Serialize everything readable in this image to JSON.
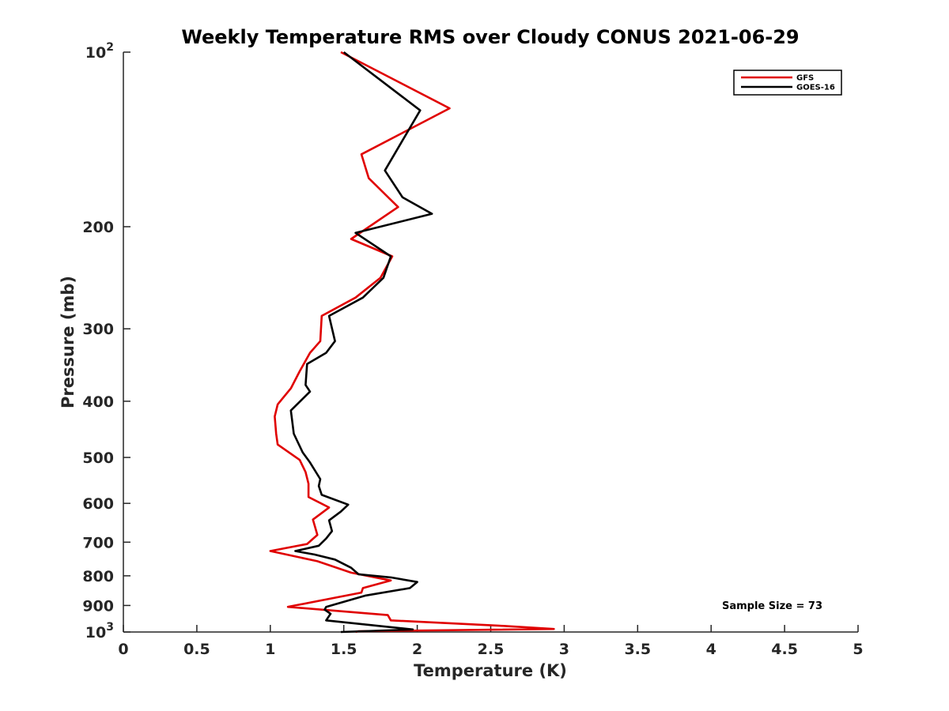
{
  "chart_data": {
    "type": "line",
    "title": "Weekly Temperature RMS over Cloudy CONUS 2021-06-29",
    "xlabel": "Temperature (K)",
    "ylabel": "Pressure (mb)",
    "xlim": [
      0,
      5
    ],
    "ylim": [
      100,
      1000
    ],
    "y_scale": "log",
    "y_reversed": true,
    "x_ticks": [
      "0",
      "0.5",
      "1",
      "1.5",
      "2",
      "2.5",
      "3",
      "3.5",
      "4",
      "4.5",
      "5"
    ],
    "y_ticks": [
      {
        "value": 100,
        "base": "10",
        "exp": "2"
      },
      {
        "value": 200,
        "label": "200"
      },
      {
        "value": 300,
        "label": "300"
      },
      {
        "value": 400,
        "label": "400"
      },
      {
        "value": 500,
        "label": "500"
      },
      {
        "value": 600,
        "label": "600"
      },
      {
        "value": 700,
        "label": "700"
      },
      {
        "value": 800,
        "label": "800"
      },
      {
        "value": 900,
        "label": "900"
      },
      {
        "value": 1000,
        "base": "10",
        "exp": "3"
      }
    ],
    "legend_position": "top-right",
    "grid": false,
    "annotation": "Sample Size = 73",
    "series": [
      {
        "name": "GFS",
        "color": "#e00000",
        "points": [
          [
            1.48,
            100
          ],
          [
            2.22,
            125
          ],
          [
            1.62,
            150
          ],
          [
            1.67,
            165
          ],
          [
            1.87,
            185
          ],
          [
            1.55,
            210
          ],
          [
            1.83,
            225
          ],
          [
            1.75,
            245
          ],
          [
            1.58,
            265
          ],
          [
            1.35,
            285
          ],
          [
            1.34,
            315
          ],
          [
            1.27,
            330
          ],
          [
            1.2,
            355
          ],
          [
            1.14,
            380
          ],
          [
            1.05,
            405
          ],
          [
            1.03,
            425
          ],
          [
            1.04,
            455
          ],
          [
            1.05,
            475
          ],
          [
            1.2,
            505
          ],
          [
            1.24,
            530
          ],
          [
            1.26,
            555
          ],
          [
            1.26,
            585
          ],
          [
            1.4,
            610
          ],
          [
            1.29,
            640
          ],
          [
            1.32,
            680
          ],
          [
            1.25,
            705
          ],
          [
            1.0,
            725
          ],
          [
            1.32,
            755
          ],
          [
            1.55,
            790
          ],
          [
            1.82,
            815
          ],
          [
            1.63,
            840
          ],
          [
            1.62,
            855
          ],
          [
            1.12,
            905
          ],
          [
            1.8,
            935
          ],
          [
            1.82,
            955
          ],
          [
            2.55,
            975
          ],
          [
            2.93,
            988
          ],
          [
            1.6,
            997
          ],
          [
            1.58,
            1000
          ]
        ]
      },
      {
        "name": "GOES-16",
        "color": "#000000",
        "points": [
          [
            1.5,
            100
          ],
          [
            2.02,
            126
          ],
          [
            1.78,
            160
          ],
          [
            1.9,
            178
          ],
          [
            2.1,
            190
          ],
          [
            1.58,
            205
          ],
          [
            1.82,
            225
          ],
          [
            1.77,
            245
          ],
          [
            1.63,
            265
          ],
          [
            1.4,
            285
          ],
          [
            1.44,
            315
          ],
          [
            1.38,
            330
          ],
          [
            1.25,
            345
          ],
          [
            1.24,
            375
          ],
          [
            1.27,
            385
          ],
          [
            1.14,
            415
          ],
          [
            1.16,
            455
          ],
          [
            1.22,
            490
          ],
          [
            1.27,
            510
          ],
          [
            1.34,
            545
          ],
          [
            1.33,
            560
          ],
          [
            1.35,
            580
          ],
          [
            1.53,
            603
          ],
          [
            1.48,
            620
          ],
          [
            1.4,
            642
          ],
          [
            1.42,
            670
          ],
          [
            1.38,
            690
          ],
          [
            1.33,
            710
          ],
          [
            1.17,
            725
          ],
          [
            1.3,
            735
          ],
          [
            1.44,
            750
          ],
          [
            1.55,
            775
          ],
          [
            1.6,
            795
          ],
          [
            1.82,
            805
          ],
          [
            2.0,
            820
          ],
          [
            1.95,
            840
          ],
          [
            1.65,
            865
          ],
          [
            1.38,
            905
          ],
          [
            1.37,
            915
          ],
          [
            1.41,
            930
          ],
          [
            1.38,
            955
          ],
          [
            1.97,
            990
          ],
          [
            1.48,
            1000
          ]
        ]
      }
    ]
  }
}
